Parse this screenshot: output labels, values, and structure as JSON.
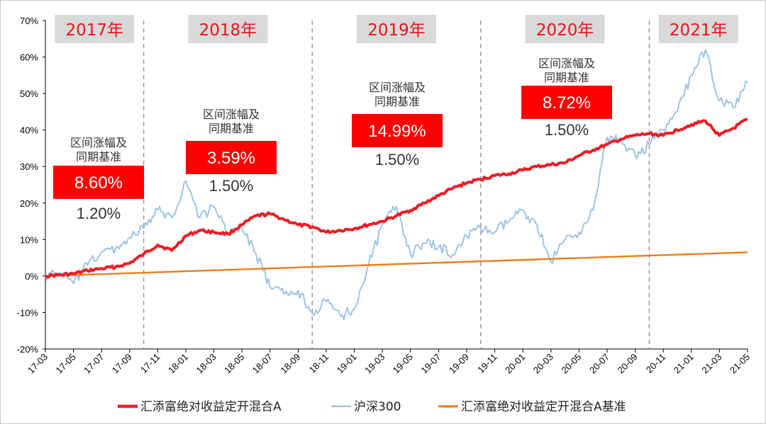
{
  "chart_data": {
    "type": "line",
    "title": "",
    "xlabel": "",
    "ylabel": "",
    "ylim": [
      -20,
      70
    ],
    "yticks": [
      -20,
      -10,
      0,
      10,
      20,
      30,
      40,
      50,
      60,
      70
    ],
    "ytick_labels": [
      "-20%",
      "-10%",
      "0%",
      "10%",
      "20%",
      "30%",
      "40%",
      "50%",
      "60%",
      "70%"
    ],
    "x_range": [
      "17-03",
      "21-05"
    ],
    "xtick_labels": [
      "17-03",
      "17-05",
      "17-07",
      "17-09",
      "17-11",
      "18-01",
      "18-03",
      "18-05",
      "18-07",
      "18-09",
      "18-11",
      "19-01",
      "19-03",
      "19-05",
      "19-07",
      "19-09",
      "19-11",
      "20-01",
      "20-03",
      "20-05",
      "20-07",
      "20-09",
      "20-11",
      "21-01",
      "21-03",
      "21-05"
    ],
    "grid": false,
    "legend_position": "bottom",
    "year_dividers": [
      "17-10",
      "18-10",
      "19-10",
      "20-10"
    ],
    "year_labels": [
      "2017年",
      "2018年",
      "2019年",
      "2020年",
      "2021年"
    ],
    "annotations": [
      {
        "label_line1": "区间涨幅及",
        "label_line2": "同期基准",
        "value": "8.60%",
        "benchmark": "1.20%"
      },
      {
        "label_line1": "区间涨幅及",
        "label_line2": "同期基准",
        "value": "3.59%",
        "benchmark": "1.50%"
      },
      {
        "label_line1": "区间涨幅及",
        "label_line2": "同期基准",
        "value": "14.99%",
        "benchmark": "1.50%"
      },
      {
        "label_line1": "区间涨幅及",
        "label_line2": "同期基准",
        "value": "8.72%",
        "benchmark": "1.50%"
      }
    ],
    "series": [
      {
        "name": "汇添富绝对收益定开混合A",
        "color": "#ee1c25",
        "points": [
          [
            "17-03",
            0
          ],
          [
            "17-04",
            0.3
          ],
          [
            "17-05",
            0.6
          ],
          [
            "17-06",
            1.5
          ],
          [
            "17-07",
            2
          ],
          [
            "17-08",
            2.5
          ],
          [
            "17-09",
            3.5
          ],
          [
            "17-10",
            6
          ],
          [
            "17-11",
            8.5
          ],
          [
            "17-12",
            7
          ],
          [
            "18-01",
            11
          ],
          [
            "18-02",
            12.5
          ],
          [
            "18-03",
            12
          ],
          [
            "18-04",
            11.5
          ],
          [
            "18-05",
            14
          ],
          [
            "18-06",
            16.5
          ],
          [
            "18-07",
            17
          ],
          [
            "18-08",
            15.5
          ],
          [
            "18-09",
            14
          ],
          [
            "18-10",
            13.5
          ],
          [
            "18-11",
            12
          ],
          [
            "18-12",
            12.5
          ],
          [
            "19-01",
            13
          ],
          [
            "19-02",
            14
          ],
          [
            "19-03",
            15
          ],
          [
            "19-04",
            16.5
          ],
          [
            "19-05",
            18
          ],
          [
            "19-06",
            20
          ],
          [
            "19-07",
            22
          ],
          [
            "19-08",
            24
          ],
          [
            "19-09",
            25.5
          ],
          [
            "19-10",
            26.5
          ],
          [
            "19-11",
            27.5
          ],
          [
            "19-12",
            28
          ],
          [
            "20-01",
            29
          ],
          [
            "20-02",
            30
          ],
          [
            "20-03",
            30.5
          ],
          [
            "20-04",
            31
          ],
          [
            "20-05",
            33
          ],
          [
            "20-06",
            34.5
          ],
          [
            "20-07",
            36
          ],
          [
            "20-08",
            37.5
          ],
          [
            "20-09",
            38.5
          ],
          [
            "20-10",
            39
          ],
          [
            "20-11",
            38.5
          ],
          [
            "20-12",
            40
          ],
          [
            "21-01",
            41.5
          ],
          [
            "21-02",
            42.5
          ],
          [
            "21-03",
            38.5
          ],
          [
            "21-04",
            40.5
          ],
          [
            "21-05",
            43
          ]
        ]
      },
      {
        "name": "沪深300",
        "color": "#9dc3e6",
        "points": [
          [
            "17-03",
            0
          ],
          [
            "17-04",
            1
          ],
          [
            "17-05",
            -2
          ],
          [
            "17-06",
            3
          ],
          [
            "17-07",
            6.5
          ],
          [
            "17-08",
            7.5
          ],
          [
            "17-09",
            10.5
          ],
          [
            "17-10",
            13
          ],
          [
            "17-11",
            18
          ],
          [
            "17-12",
            16
          ],
          [
            "18-01",
            26
          ],
          [
            "18-02",
            16
          ],
          [
            "18-03",
            19
          ],
          [
            "18-04",
            12
          ],
          [
            "18-05",
            13
          ],
          [
            "18-06",
            6
          ],
          [
            "18-07",
            -3
          ],
          [
            "18-08",
            -5
          ],
          [
            "18-09",
            -4
          ],
          [
            "18-10",
            -10
          ],
          [
            "18-11",
            -7
          ],
          [
            "18-12",
            -11
          ],
          [
            "19-01",
            -9
          ],
          [
            "19-02",
            3
          ],
          [
            "19-03",
            14
          ],
          [
            "19-04",
            19
          ],
          [
            "19-05",
            6
          ],
          [
            "19-06",
            9
          ],
          [
            "19-07",
            8
          ],
          [
            "19-08",
            6
          ],
          [
            "19-09",
            11
          ],
          [
            "19-10",
            13
          ],
          [
            "19-11",
            12
          ],
          [
            "19-12",
            15
          ],
          [
            "20-01",
            18
          ],
          [
            "20-02",
            14
          ],
          [
            "20-03",
            4
          ],
          [
            "20-04",
            10
          ],
          [
            "20-05",
            12
          ],
          [
            "20-06",
            18
          ],
          [
            "20-07",
            38
          ],
          [
            "20-08",
            37
          ],
          [
            "20-09",
            33
          ],
          [
            "20-10",
            36
          ],
          [
            "20-11",
            40
          ],
          [
            "20-12",
            45
          ],
          [
            "21-01",
            55
          ],
          [
            "21-02",
            62
          ],
          [
            "21-03",
            48
          ],
          [
            "21-04",
            46
          ],
          [
            "21-05",
            53
          ]
        ]
      },
      {
        "name": "汇添富绝对收益定开混合A基准",
        "color": "#ee7d13",
        "points": [
          [
            "17-03",
            0
          ],
          [
            "21-05",
            6.5
          ]
        ]
      }
    ]
  }
}
